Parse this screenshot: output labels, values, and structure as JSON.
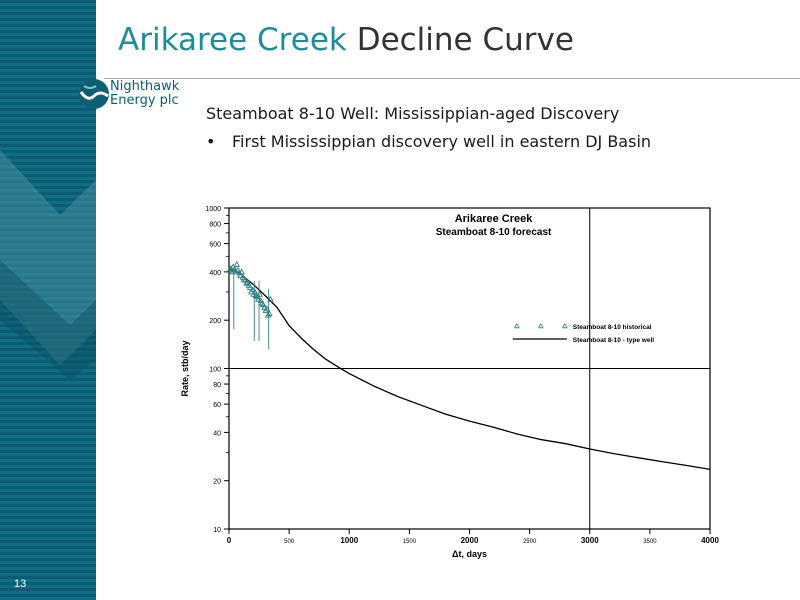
{
  "slide": {
    "title_accent": "Arikaree Creek",
    "title_rest": " Decline Curve",
    "slide_number": "13",
    "subtitle": "Steamboat 8-10 Well: Mississippian-aged Discovery",
    "bullet": "First Mississippian discovery well in eastern DJ Basin",
    "bullet_symbol": "•"
  },
  "logo": {
    "line1": "Nighthawk",
    "line2": "Energy plc"
  },
  "colors": {
    "stripe": "#0c5d72",
    "accent": "#1e8c9a",
    "marker": "#2e7d80"
  },
  "chart_data": {
    "type": "line",
    "title": "Arikaree Creek",
    "subtitle": "Steamboat 8-10 forecast",
    "xlabel": "Δt, days",
    "ylabel": "Rate, stb/day",
    "xlim": [
      0,
      4000
    ],
    "ylim": [
      10,
      1000
    ],
    "y_scale": "log",
    "x_ticks": [
      "0",
      "500",
      "1000",
      "1500",
      "2000",
      "2500",
      "3000",
      "3500",
      "4000"
    ],
    "y_ticks": [
      "10",
      "20",
      "40",
      "60",
      "80",
      "100",
      "200",
      "400",
      "600",
      "800",
      "1000"
    ],
    "reference_lines": {
      "x": 3000,
      "y": 100
    },
    "legend_position": "right",
    "series": [
      {
        "name": "Steamboat 8-10 historical",
        "style": "markers",
        "x": [
          5,
          15,
          25,
          35,
          45,
          55,
          65,
          75,
          85,
          95,
          105,
          115,
          125,
          135,
          145,
          155,
          165,
          175,
          185,
          195,
          205,
          215,
          225,
          235,
          245,
          255,
          265,
          275,
          285,
          295,
          305,
          315,
          325,
          335,
          345
        ],
        "y": [
          410,
          420,
          400,
          430,
          415,
          405,
          445,
          410,
          395,
          380,
          400,
          370,
          360,
          355,
          340,
          345,
          330,
          320,
          300,
          310,
          290,
          300,
          285,
          280,
          270,
          290,
          265,
          255,
          250,
          240,
          230,
          235,
          215,
          220,
          270
        ]
      },
      {
        "name": "Steamboat 8-10 - type well",
        "style": "line",
        "x": [
          0,
          50,
          100,
          200,
          300,
          400,
          500,
          600,
          700,
          800,
          900,
          1000,
          1200,
          1400,
          1600,
          1800,
          2000,
          2200,
          2400,
          2600,
          2800,
          3000,
          3200,
          3400,
          3600,
          3800,
          4000
        ],
        "y": [
          420,
          405,
          385,
          335,
          285,
          240,
          185,
          155,
          132,
          115,
          103,
          93,
          78,
          67,
          59,
          52,
          47,
          43,
          39,
          36,
          34,
          31.5,
          29.5,
          27.8,
          26.3,
          24.9,
          23.5
        ]
      }
    ]
  }
}
